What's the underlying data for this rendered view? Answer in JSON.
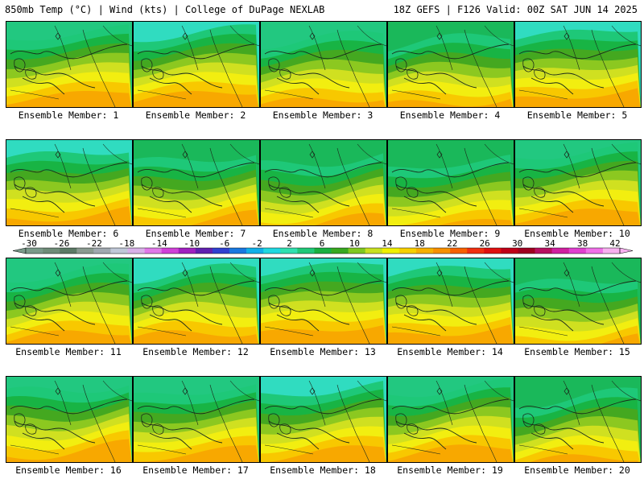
{
  "header": {
    "left": "850mb Temp (°C) | Wind (kts) | College of DuPage NEXLAB",
    "right": "18Z GEFS | F126 Valid: 00Z SAT JUN 14 2025"
  },
  "panels": [
    {
      "label": "Ensemble Member: 1"
    },
    {
      "label": "Ensemble Member: 2"
    },
    {
      "label": "Ensemble Member: 3"
    },
    {
      "label": "Ensemble Member: 4"
    },
    {
      "label": "Ensemble Member: 5"
    },
    {
      "label": "Ensemble Member: 6"
    },
    {
      "label": "Ensemble Member: 7"
    },
    {
      "label": "Ensemble Member: 8"
    },
    {
      "label": "Ensemble Member: 9"
    },
    {
      "label": "Ensemble Member: 10"
    },
    {
      "label": "Ensemble Member: 11"
    },
    {
      "label": "Ensemble Member: 12"
    },
    {
      "label": "Ensemble Member: 13"
    },
    {
      "label": "Ensemble Member: 14"
    },
    {
      "label": "Ensemble Member: 15"
    },
    {
      "label": "Ensemble Member: 16"
    },
    {
      "label": "Ensemble Member: 17"
    },
    {
      "label": "Ensemble Member: 18"
    },
    {
      "label": "Ensemble Member: 19"
    },
    {
      "label": "Ensemble Member: 20"
    }
  ],
  "colorbar": {
    "ticks": [
      "-30",
      "-26",
      "-22",
      "-18",
      "-14",
      "-10",
      "-6",
      "-2",
      "2",
      "6",
      "10",
      "14",
      "18",
      "22",
      "26",
      "30",
      "34",
      "38",
      "42"
    ],
    "colors": [
      "#7a9a8a",
      "#6e8c78",
      "#5c7a66",
      "#8a9a90",
      "#a0a8b0",
      "#c0c8d8",
      "#d8b0e8",
      "#e078e8",
      "#d040d8",
      "#a020c0",
      "#6020b0",
      "#3040d0",
      "#1878e0",
      "#10b0e8",
      "#20d8e0",
      "#30e0b0",
      "#20c878",
      "#18b040",
      "#38a820",
      "#80c820",
      "#c8e020",
      "#f0f000",
      "#f8d000",
      "#f8b000",
      "#f89000",
      "#f86000",
      "#f03010",
      "#e01010",
      "#c00018",
      "#a00020",
      "#b81060",
      "#d020a0",
      "#e040d0",
      "#f070e8",
      "#f8b0f0"
    ]
  }
}
